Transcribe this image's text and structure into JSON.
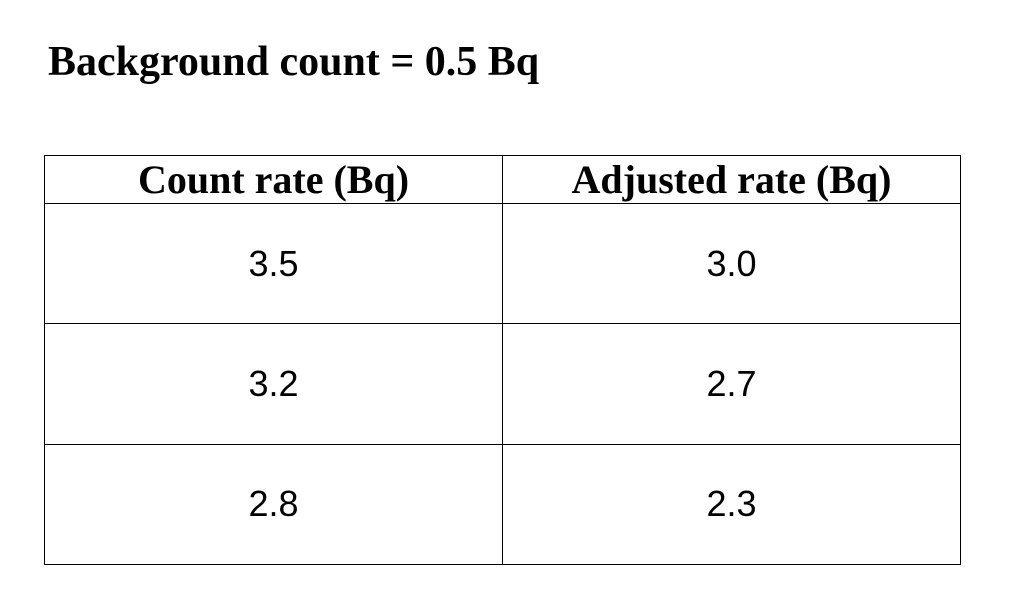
{
  "heading": "Background count = 0.5 Bq",
  "table": {
    "columns": [
      "Count rate (Bq)",
      "Adjusted rate (Bq)"
    ],
    "rows": [
      [
        "3.5",
        "3.0"
      ],
      [
        "3.2",
        "2.7"
      ],
      [
        "2.8",
        "2.3"
      ]
    ]
  }
}
